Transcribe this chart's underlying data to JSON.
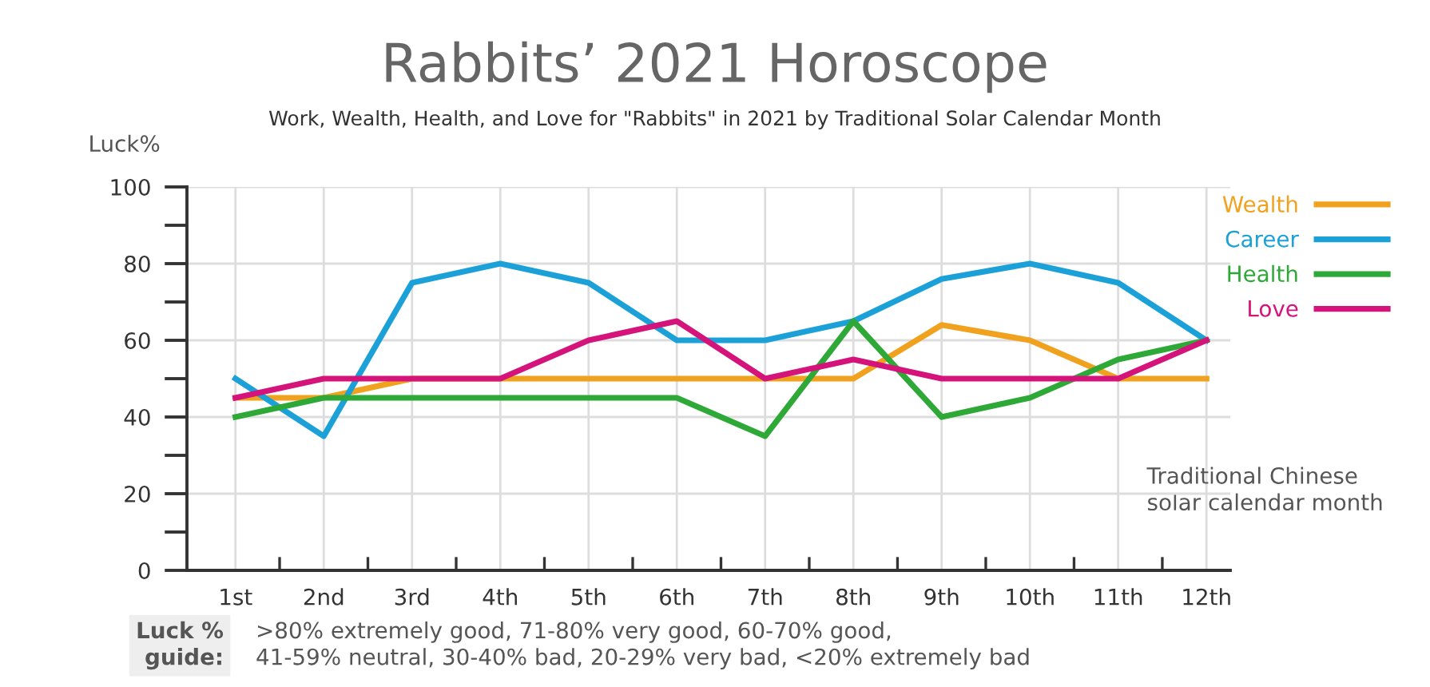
{
  "chart_data": {
    "type": "line",
    "title": "Rabbits’ 2021 Horoscope",
    "subtitle": "Work, Wealth, Health, and Love for \"Rabbits\" in 2021 by Traditional Solar Calendar Month",
    "ylabel": "Luck%",
    "xlabel": "Traditional Chinese\nsolar calendar month",
    "categories": [
      "1st",
      "2nd",
      "3rd",
      "4th",
      "5th",
      "6th",
      "7th",
      "8th",
      "9th",
      "10th",
      "11th",
      "12th"
    ],
    "series": [
      {
        "name": "Wealth",
        "color": "#f0a21e",
        "values": [
          45,
          45,
          50,
          50,
          50,
          50,
          50,
          50,
          64,
          60,
          50,
          50
        ]
      },
      {
        "name": "Career",
        "color": "#1ba1d8",
        "values": [
          50,
          35,
          75,
          80,
          75,
          60,
          60,
          65,
          76,
          80,
          75,
          60
        ]
      },
      {
        "name": "Health",
        "color": "#2ea836",
        "values": [
          40,
          45,
          45,
          45,
          45,
          45,
          35,
          65,
          40,
          45,
          55,
          60
        ]
      },
      {
        "name": "Love",
        "color": "#d4147a",
        "values": [
          45,
          50,
          50,
          50,
          60,
          65,
          50,
          55,
          50,
          50,
          50,
          60
        ]
      }
    ],
    "ylim": [
      0,
      100
    ],
    "yticks": [
      0,
      {
        "value": 10,
        "label": null
      },
      20,
      {
        "value": 30,
        "label": null
      },
      40,
      {
        "value": 50,
        "label": null
      },
      60,
      {
        "value": 70,
        "label": null
      },
      80,
      {
        "value": 90,
        "label": null
      },
      100
    ],
    "grid": true,
    "legend": "top right",
    "marker": "none",
    "line_style": "solid",
    "annotations": [
      "Luck %\nguide:",
      ">80% extremely good, 71-80% very good, 60-70% good,\n41-59% neutral, 30-40% bad, 20-29% very bad, <20% extremely bad"
    ]
  }
}
